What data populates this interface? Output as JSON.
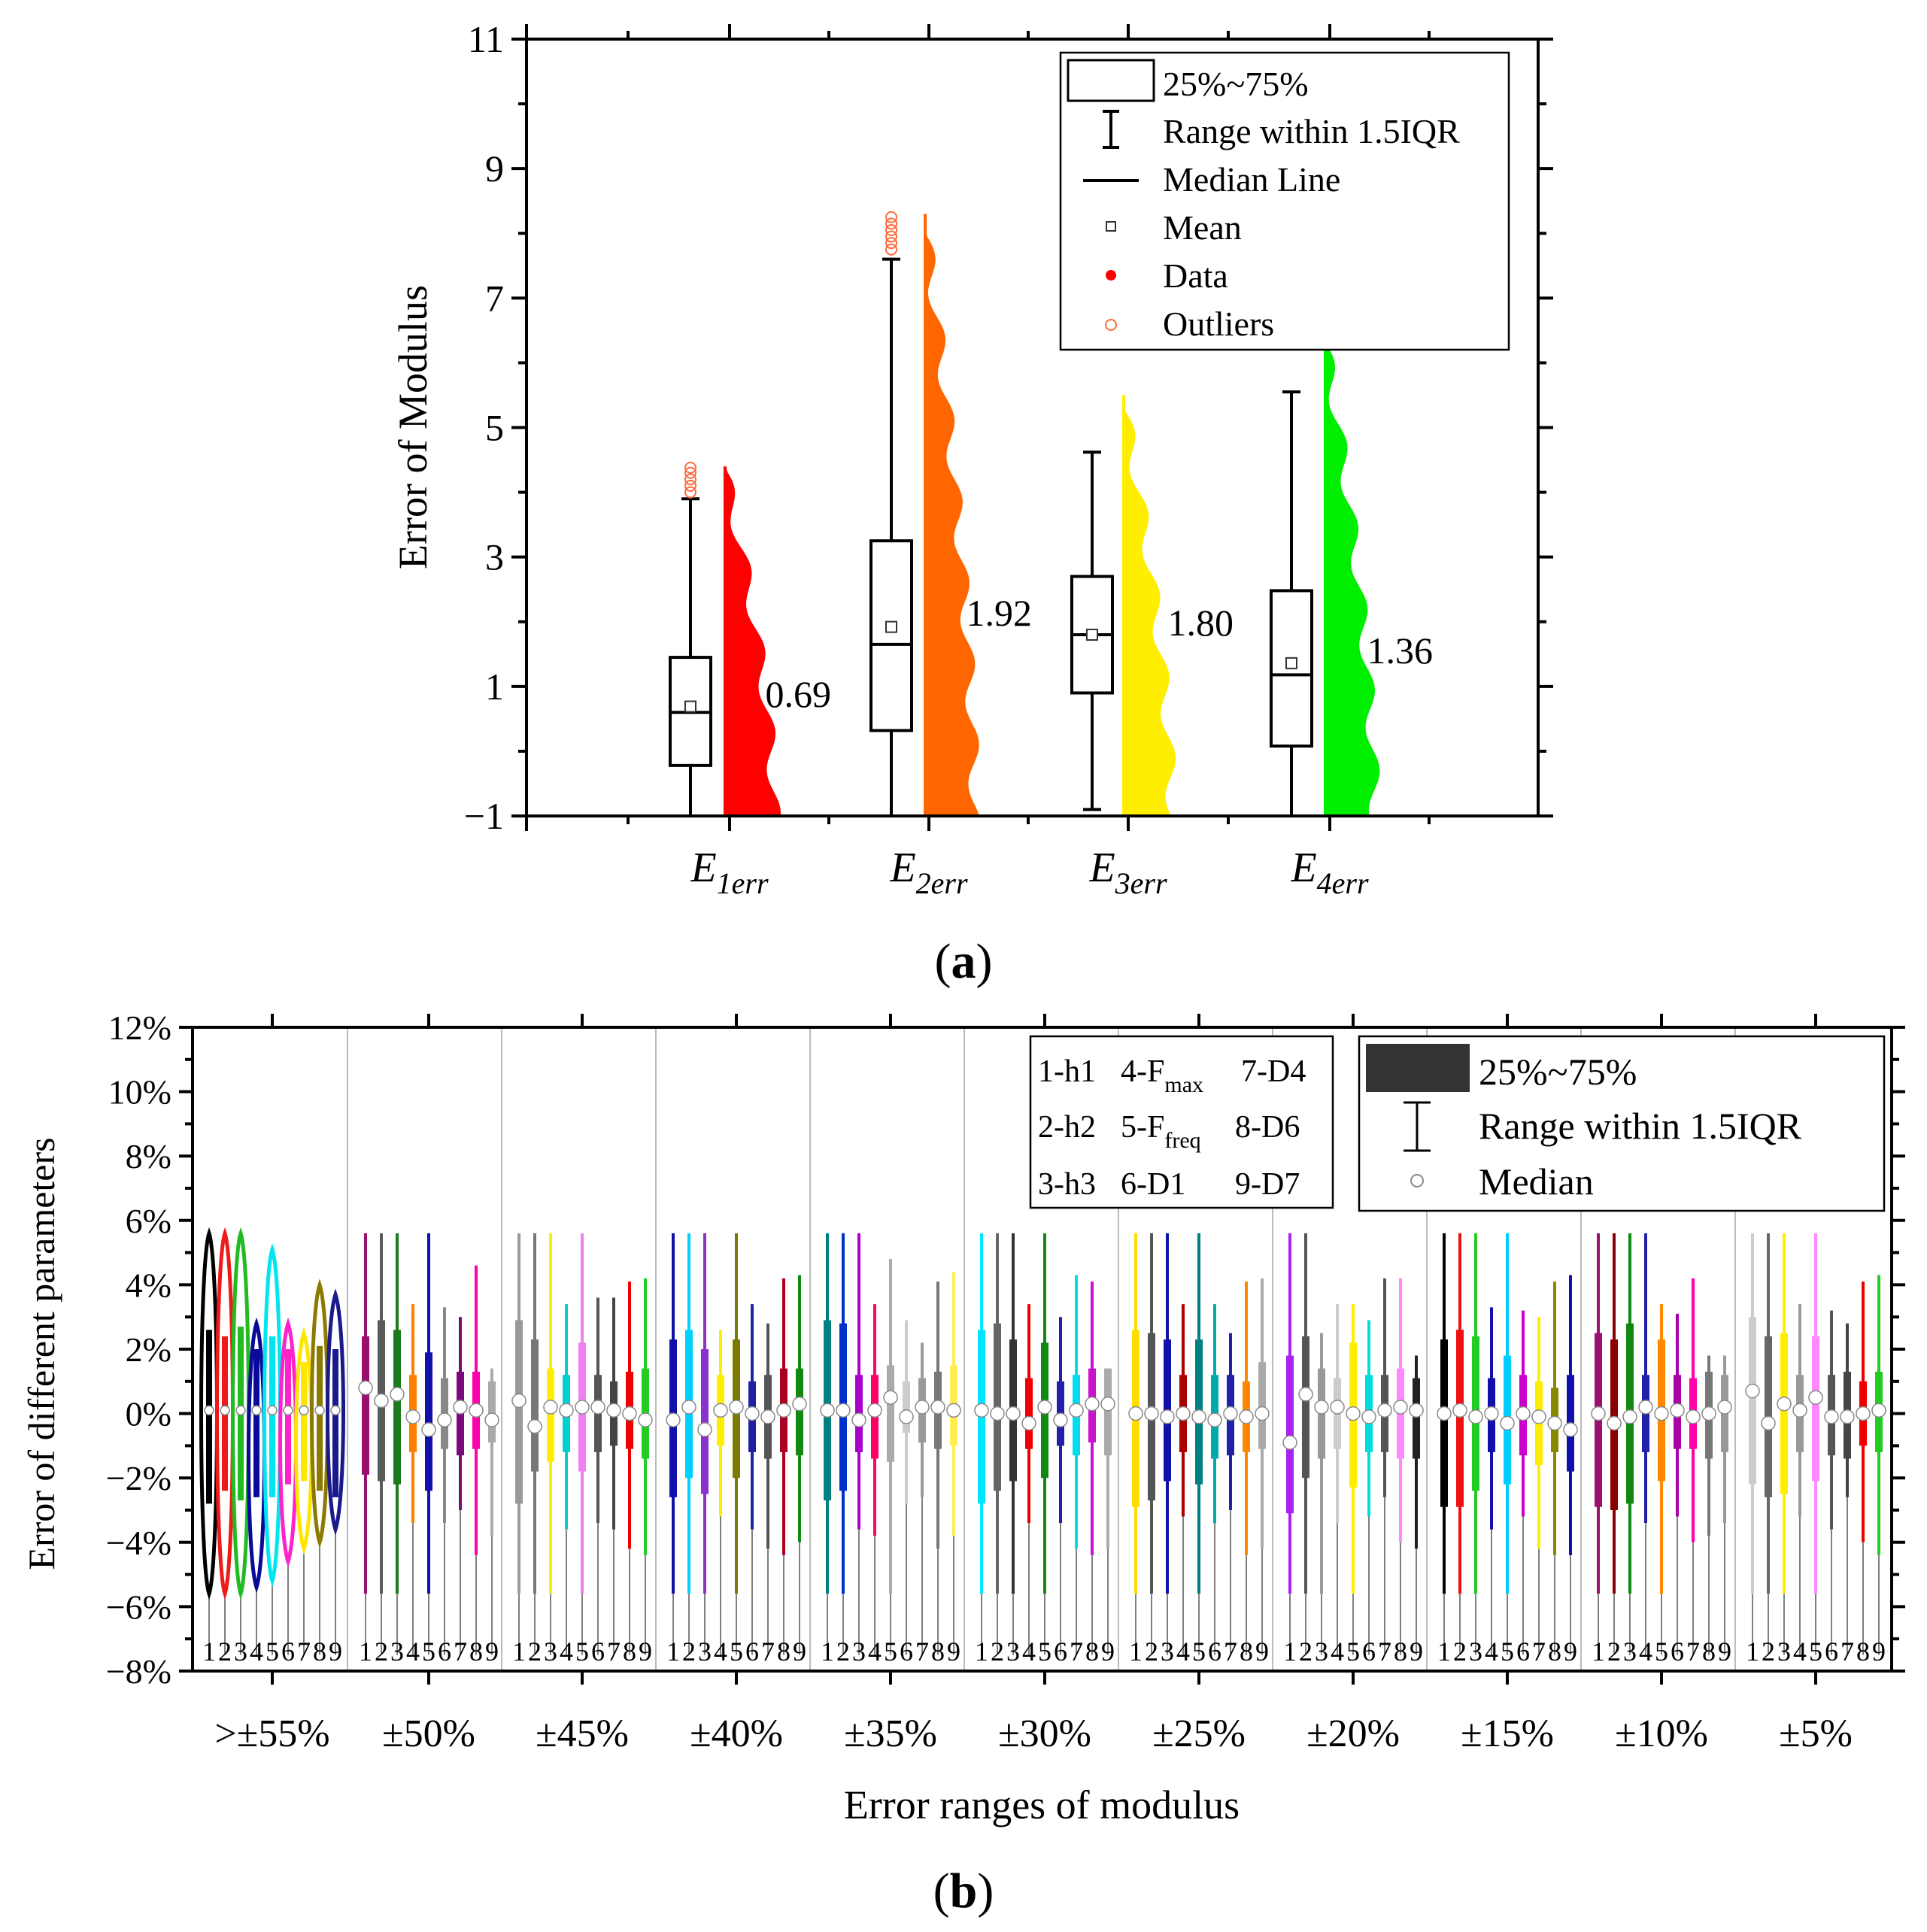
{
  "chart_data": [
    {
      "type": "box",
      "panel_label": "a",
      "ylabel": "Error of Modulus",
      "ylim": [
        -1,
        11
      ],
      "yticks": [
        -1,
        1,
        3,
        5,
        7,
        9,
        11
      ],
      "ytick_labels": [
        "−1",
        "1",
        "3",
        "5",
        "7",
        "9",
        "11"
      ],
      "categories": [
        {
          "main": "E",
          "sub": "1err"
        },
        {
          "main": "E",
          "sub": "2err"
        },
        {
          "main": "E",
          "sub": "3err"
        },
        {
          "main": "E",
          "sub": "4err"
        }
      ],
      "boxes": [
        {
          "whisker_low": -1.0,
          "q1": -0.22,
          "median": 0.6,
          "q3": 1.45,
          "whisker_high": 3.9,
          "mean": 0.69,
          "outliers": [
            4.0,
            4.1,
            4.2,
            4.3,
            4.38
          ]
        },
        {
          "whisker_low": -1.0,
          "q1": 0.32,
          "median": 1.65,
          "q3": 3.25,
          "whisker_high": 7.6,
          "mean": 1.92,
          "outliers": [
            7.75,
            7.85,
            7.95,
            8.05,
            8.15,
            8.25
          ]
        },
        {
          "whisker_low": -0.9,
          "q1": 0.9,
          "median": 1.8,
          "q3": 2.7,
          "whisker_high": 4.62,
          "mean": 1.8,
          "outliers": []
        },
        {
          "whisker_low": -1.0,
          "q1": 0.08,
          "median": 1.18,
          "q3": 2.48,
          "whisker_high": 5.55,
          "mean": 1.36,
          "outliers": []
        }
      ],
      "data_max": [
        4.4,
        8.3,
        5.5,
        6.45
      ],
      "data_colors": [
        "#ff0000",
        "#ff6600",
        "#ffee00",
        "#00ee00"
      ],
      "mean_labels": [
        "0.69",
        "1.92",
        "1.80",
        "1.36"
      ],
      "legend": {
        "position": "top-right",
        "items": [
          "25%~75%",
          "Range within 1.5IQR",
          "Median Line",
          "Mean",
          "Data",
          "Outliers"
        ]
      }
    },
    {
      "type": "box",
      "panel_label": "b",
      "xlabel": "Error ranges of modulus",
      "ylabel": "Error of different parameters",
      "ylim": [
        -8,
        12
      ],
      "yticks": [
        -8,
        -6,
        -4,
        -2,
        0,
        2,
        4,
        6,
        8,
        10,
        12
      ],
      "ytick_labels": [
        "−8%",
        "−6%",
        "−4%",
        "−2%",
        "0%",
        "2%",
        "4%",
        "6%",
        "8%",
        "10%",
        "12%"
      ],
      "groups": [
        ">±55%",
        "±50%",
        "±45%",
        "±40%",
        "±35%",
        "±30%",
        "±25%",
        "±20%",
        "±15%",
        "±10%",
        "±5%"
      ],
      "index_labels": [
        "1",
        "2",
        "3",
        "4",
        "5",
        "6",
        "7",
        "8",
        "9"
      ],
      "param_legend": [
        "1-h1",
        "4-F",
        "7-D4",
        "2-h2",
        "5-F",
        "8-D6",
        "3-h3",
        "6-D1",
        "9-D7"
      ],
      "param_legend_subs": [
        "max",
        "freq"
      ],
      "legend": {
        "position": "top-right",
        "items": [
          "25%~75%",
          "Range within 1.5IQR",
          "Median"
        ]
      },
      "group_colors": [
        [
          "#000000",
          "#ee1a1a",
          "#22bb22",
          "#0a0a9a",
          "#00e5ee",
          "#ff22cc",
          "#ffe600",
          "#8c7a00",
          "#1a1a8c"
        ],
        [
          "#9b0f6e",
          "#5a5a5a",
          "#1c7a1c",
          "#ff8000",
          "#1010aa",
          "#888888",
          "#7a0a7a",
          "#ff00aa",
          "#aaaaaa"
        ],
        [
          "#999999",
          "#777777",
          "#ffee00",
          "#00d0d0",
          "#f080f0",
          "#555555",
          "#444444",
          "#ee0000",
          "#22cc22"
        ],
        [
          "#1010aa",
          "#00d0ff",
          "#8833cc",
          "#ffee00",
          "#7a7a00",
          "#2020a0",
          "#555555",
          "#aa0022",
          "#118811"
        ],
        [
          "#008080",
          "#0030cc",
          "#aa00cc",
          "#ff0066",
          "#aaaaaa",
          "#cccccc",
          "#999999",
          "#777777",
          "#ffee55"
        ],
        [
          "#00e5ff",
          "#666666",
          "#333333",
          "#ee0000",
          "#118811",
          "#2020aa",
          "#00ddee",
          "#cc11cc",
          "#aaaaaa"
        ],
        [
          "#ffdd00",
          "#555555",
          "#1010aa",
          "#aa0000",
          "#008080",
          "#00aaaa",
          "#2020aa",
          "#ff8800",
          "#aaaaaa"
        ],
        [
          "#aa22ee",
          "#555555",
          "#999999",
          "#cccccc",
          "#ffee00",
          "#00dddd",
          "#555555",
          "#ff88ff",
          "#222222"
        ],
        [
          "#000000",
          "#ee1111",
          "#22cc22",
          "#1010aa",
          "#00ccff",
          "#cc00cc",
          "#ffee00",
          "#888800",
          "#1010aa"
        ],
        [
          "#9b0f6e",
          "#8a0000",
          "#118811",
          "#2020aa",
          "#ff8800",
          "#aa00aa",
          "#ff00aa",
          "#777777",
          "#999999"
        ],
        [
          "#cccccc",
          "#666666",
          "#ffee00",
          "#999999",
          "#ff88ff",
          "#555555",
          "#444444",
          "#ee0000",
          "#22cc22"
        ]
      ],
      "group_medians": [
        [
          0.1,
          0.1,
          0.1,
          0.1,
          0.1,
          0.1,
          0.1,
          0.1,
          0.1
        ],
        [
          0.8,
          0.4,
          0.6,
          -0.1,
          -0.5,
          -0.2,
          0.2,
          0.1,
          -0.2
        ],
        [
          0.4,
          -0.4,
          0.2,
          0.1,
          0.2,
          0.2,
          0.1,
          0.0,
          -0.2
        ],
        [
          -0.2,
          0.2,
          -0.5,
          0.1,
          0.2,
          0.0,
          -0.1,
          0.1,
          0.3
        ],
        [
          0.1,
          0.1,
          -0.2,
          0.1,
          0.5,
          -0.1,
          0.2,
          0.2,
          0.1
        ],
        [
          0.1,
          0.0,
          0.0,
          -0.3,
          0.2,
          -0.2,
          0.1,
          0.3,
          0.3
        ],
        [
          0.0,
          0.0,
          -0.1,
          0.0,
          -0.1,
          -0.2,
          0.0,
          -0.1,
          0.0
        ],
        [
          -0.9,
          0.6,
          0.2,
          0.2,
          0.0,
          -0.1,
          0.1,
          0.2,
          0.1
        ],
        [
          0.0,
          0.1,
          -0.1,
          0.0,
          -0.3,
          0.0,
          -0.1,
          -0.3,
          -0.5
        ],
        [
          0.0,
          -0.3,
          -0.1,
          0.2,
          0.0,
          0.1,
          -0.1,
          0.0,
          0.2
        ],
        [
          0.7,
          -0.3,
          0.3,
          0.1,
          0.5,
          -0.1,
          -0.1,
          0.0,
          0.1
        ]
      ],
      "group_q1": [
        [
          -2.8,
          -2.4,
          -2.7,
          -2.6,
          -2.6,
          -2.2,
          -2.1,
          -2.4,
          -2.6
        ],
        [
          -1.9,
          -2.1,
          -2.2,
          -1.2,
          -2.4,
          -1.1,
          -1.3,
          -1.1,
          -0.9
        ],
        [
          -2.8,
          -1.8,
          -1.5,
          -1.2,
          -1.8,
          -1.2,
          -1.0,
          -1.1,
          -1.4
        ],
        [
          -2.6,
          -2.0,
          -2.5,
          -1.0,
          -2.0,
          -1.2,
          -1.4,
          -1.2,
          -1.3
        ],
        [
          -2.7,
          -2.4,
          -1.2,
          -1.4,
          -1.5,
          -0.6,
          -0.9,
          -1.1,
          -1.0
        ],
        [
          -2.8,
          -2.4,
          -2.1,
          -1.1,
          -2.0,
          -1.0,
          -1.3,
          -0.9,
          -1.3
        ],
        [
          -2.9,
          -2.7,
          -2.1,
          -1.2,
          -2.2,
          -1.4,
          -1.3,
          -1.2,
          -1.1
        ],
        [
          -3.1,
          -2.0,
          -1.4,
          -1.1,
          -2.3,
          -1.2,
          -1.2,
          -1.4,
          -1.4
        ],
        [
          -2.9,
          -2.9,
          -2.4,
          -1.2,
          -2.2,
          -1.3,
          -1.6,
          -1.2,
          -1.8
        ],
        [
          -2.9,
          -3.0,
          -2.8,
          -1.2,
          -2.1,
          -1.1,
          -1.1,
          -1.4,
          -1.2
        ],
        [
          -2.2,
          -2.6,
          -2.5,
          -1.2,
          -2.1,
          -1.3,
          -1.4,
          -1.0,
          -1.2
        ]
      ],
      "group_q3": [
        [
          2.6,
          2.4,
          2.7,
          2.0,
          2.4,
          2.0,
          1.6,
          2.1,
          2.0
        ],
        [
          2.4,
          2.9,
          2.6,
          1.2,
          1.9,
          1.1,
          1.3,
          1.3,
          1.0
        ],
        [
          2.9,
          2.3,
          1.4,
          1.2,
          2.2,
          1.2,
          1.0,
          1.3,
          1.4
        ],
        [
          2.3,
          2.6,
          2.0,
          1.2,
          2.3,
          1.0,
          1.2,
          1.4,
          1.4
        ],
        [
          2.9,
          2.8,
          1.2,
          1.2,
          1.5,
          1.0,
          1.1,
          1.3,
          1.5
        ],
        [
          2.6,
          2.8,
          2.3,
          1.1,
          2.2,
          1.0,
          1.2,
          1.4,
          1.4
        ],
        [
          2.6,
          2.5,
          2.3,
          1.2,
          2.3,
          1.2,
          1.2,
          1.0,
          1.6
        ],
        [
          1.8,
          2.4,
          1.4,
          1.1,
          2.2,
          1.2,
          1.2,
          1.4,
          1.1
        ],
        [
          2.3,
          2.6,
          2.4,
          1.1,
          1.8,
          1.2,
          1.0,
          0.8,
          1.2
        ],
        [
          2.5,
          2.3,
          2.8,
          1.2,
          2.3,
          1.2,
          1.1,
          1.3,
          1.2
        ],
        [
          3.0,
          2.4,
          2.5,
          1.2,
          2.4,
          1.2,
          1.3,
          1.0,
          1.3
        ]
      ],
      "group_lows": [
        [
          -5.6,
          -5.6,
          -5.6,
          -5.4,
          -5.2,
          -4.6,
          -4.2,
          -4.0,
          -3.6
        ],
        [
          -5.6,
          -5.6,
          -5.6,
          -3.4,
          -5.6,
          -3.4,
          -3.0,
          -4.4,
          -3.8
        ],
        [
          -5.6,
          -5.6,
          -5.6,
          -3.6,
          -5.6,
          -3.4,
          -3.6,
          -4.2,
          -4.4
        ],
        [
          -5.6,
          -5.6,
          -5.6,
          -3.2,
          -5.6,
          -3.6,
          -4.2,
          -4.4,
          -4.0
        ],
        [
          -5.6,
          -5.6,
          -3.6,
          -3.8,
          -5.6,
          -2.8,
          -2.6,
          -4.2,
          -3.8
        ],
        [
          -5.6,
          -5.6,
          -5.6,
          -3.4,
          -5.6,
          -3.4,
          -4.2,
          -4.4,
          -4.2
        ],
        [
          -5.6,
          -5.6,
          -5.6,
          -3.2,
          -5.6,
          -3.4,
          -3.0,
          -4.4,
          -4.2
        ],
        [
          -5.6,
          -5.6,
          -5.6,
          -3.4,
          -5.6,
          -3.2,
          -2.6,
          -4.0,
          -4.2
        ],
        [
          -5.6,
          -5.6,
          -5.6,
          -3.6,
          -5.6,
          -3.2,
          -4.2,
          -4.4,
          -4.4
        ],
        [
          -5.6,
          -5.6,
          -5.6,
          -3.4,
          -5.6,
          -3.2,
          -4.0,
          -3.8,
          -3.4
        ],
        [
          -5.6,
          -5.6,
          -5.6,
          -3.2,
          -5.6,
          -3.6,
          -2.6,
          -4.0,
          -4.4
        ]
      ],
      "group_highs": [
        [
          5.6,
          5.6,
          5.6,
          2.8,
          5.1,
          2.8,
          2.5,
          4.0,
          3.7
        ],
        [
          5.6,
          5.6,
          5.6,
          3.4,
          5.6,
          3.3,
          3.0,
          4.6,
          1.4
        ],
        [
          5.6,
          5.6,
          5.6,
          3.4,
          5.6,
          3.6,
          3.6,
          4.1,
          4.2
        ],
        [
          5.6,
          5.6,
          5.6,
          2.6,
          5.6,
          3.4,
          2.8,
          4.2,
          4.3
        ],
        [
          5.6,
          5.6,
          5.6,
          3.4,
          4.8,
          2.9,
          2.2,
          4.1,
          4.4
        ],
        [
          5.6,
          5.6,
          5.6,
          3.4,
          5.6,
          3.0,
          4.3,
          4.1,
          1.4
        ],
        [
          5.6,
          5.6,
          5.6,
          3.4,
          5.6,
          3.4,
          2.5,
          4.1,
          4.2
        ],
        [
          5.6,
          5.6,
          2.5,
          3.4,
          3.4,
          2.9,
          4.2,
          4.2,
          1.8
        ],
        [
          5.6,
          5.6,
          5.6,
          3.3,
          5.6,
          3.2,
          3.0,
          4.1,
          4.3
        ],
        [
          5.6,
          5.6,
          5.6,
          5.6,
          3.4,
          3.1,
          4.2,
          1.8,
          1.8
        ],
        [
          5.6,
          5.6,
          5.6,
          3.4,
          5.6,
          3.2,
          2.8,
          4.1,
          4.3
        ]
      ]
    }
  ]
}
